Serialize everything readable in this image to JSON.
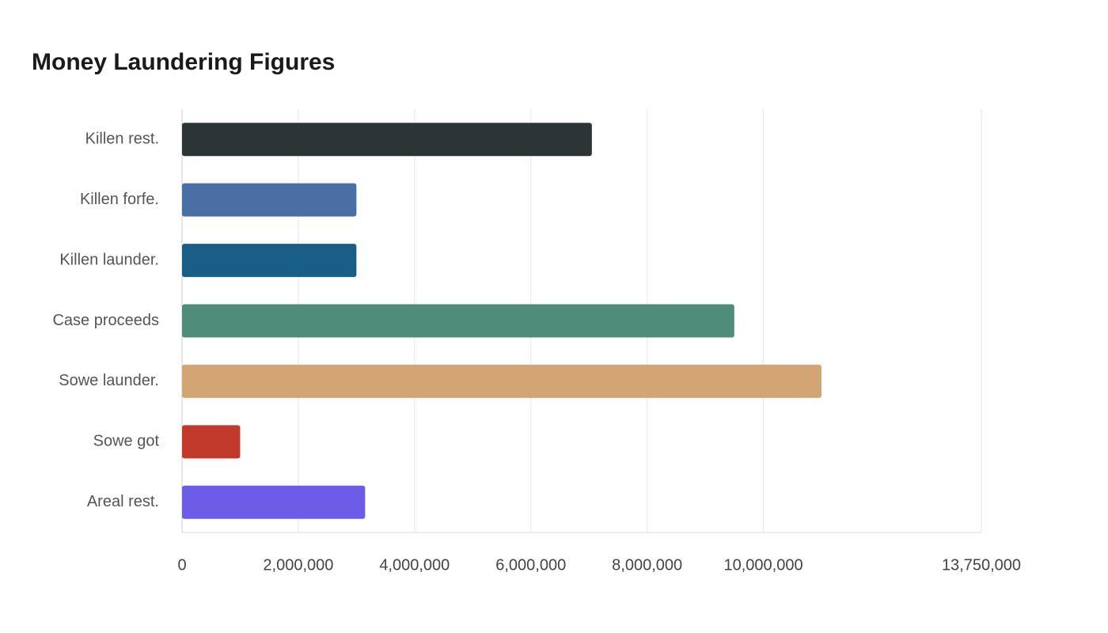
{
  "chart_data": {
    "type": "hbar",
    "title": "Money Laundering Figures",
    "categories": [
      "Killen rest.",
      "Killen forfe.",
      "Killen launder.",
      "Case proceeds",
      "Sowe launder.",
      "Sowe got",
      "Areal rest."
    ],
    "values": [
      7050000,
      3000000,
      3000000,
      9500000,
      11000000,
      1000000,
      3150000
    ],
    "colors": [
      "#2d3436",
      "#4a6fa5",
      "#195e87",
      "#4f8c7a",
      "#d3a575",
      "#c0392b",
      "#6c5ce7"
    ],
    "xlim": [
      0,
      13750000
    ],
    "xticks": [
      0,
      {
        "value": 2000000,
        "label": "2,000,000"
      },
      {
        "value": 4000000,
        "label": "4,000,000"
      },
      {
        "value": 6000000,
        "label": "6,000,000"
      },
      {
        "value": 8000000,
        "label": "8,000,000"
      },
      {
        "value": 10000000,
        "label": "10,000,000"
      },
      {
        "value": 13750000,
        "label": "13,750,000"
      }
    ],
    "grid": true
  }
}
